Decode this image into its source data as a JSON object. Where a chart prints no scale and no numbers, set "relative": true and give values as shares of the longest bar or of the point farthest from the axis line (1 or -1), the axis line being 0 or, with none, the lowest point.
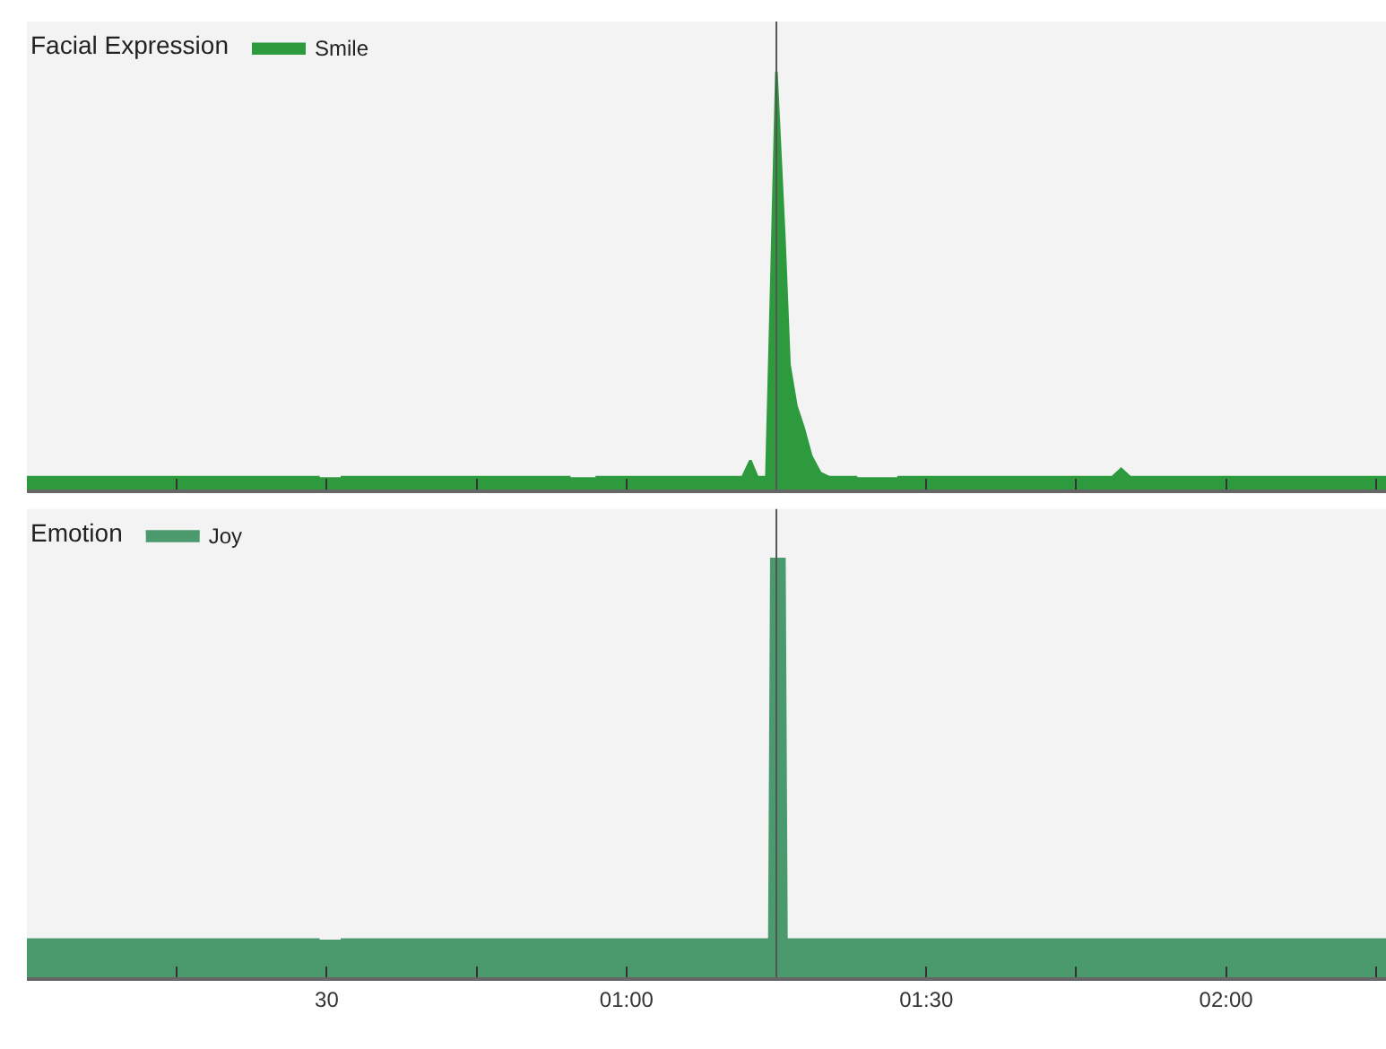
{
  "chart_data": [
    {
      "type": "area",
      "relative": true,
      "legend_title": "Facial Expression",
      "legend": "top left",
      "tick_labels": false,
      "xlim": [
        0,
        136
      ],
      "xticks": [
        {
          "value": 15,
          "label": null
        },
        {
          "value": 30,
          "label": null
        },
        {
          "value": 45,
          "label": null
        },
        {
          "value": 60,
          "label": null
        },
        {
          "value": 75,
          "label": null
        },
        {
          "value": 90,
          "label": null
        },
        {
          "value": 105,
          "label": null
        },
        {
          "value": 120,
          "label": null
        },
        {
          "value": 135,
          "label": null
        }
      ],
      "ref_lines": [
        {
          "axis": "x",
          "value": 75,
          "color": "#555555"
        }
      ],
      "series": [
        {
          "name": "Smile",
          "color": "#2e9a3e",
          "x": [
            0,
            29.3,
            30.5,
            31.4,
            54.4,
            55.5,
            56.9,
            71.6,
            72.4,
            73.1,
            74.0,
            74.5,
            75.0,
            75.8,
            76.3,
            77.0,
            77.7,
            78.5,
            79.4,
            80.3,
            83.1,
            85,
            87.1,
            108.6,
            109.5,
            110.4,
            136
          ],
          "values": [
            0.03,
            0.03,
            null,
            0.03,
            0.03,
            null,
            0.03,
            0.03,
            0.07,
            0.03,
            0.03,
            0.5,
            1.0,
            0.6,
            0.3,
            0.2,
            0.15,
            0.08,
            0.04,
            0.03,
            0.03,
            null,
            0.03,
            0.03,
            0.05,
            0.03,
            0.03
          ]
        }
      ]
    },
    {
      "type": "area",
      "relative": true,
      "legend_title": "Emotion",
      "legend": "top left",
      "tick_labels": "x",
      "xlim": [
        0,
        136
      ],
      "xticks": [
        {
          "value": 15,
          "label": null
        },
        {
          "value": 30,
          "label": "30"
        },
        {
          "value": 45,
          "label": null
        },
        {
          "value": 60,
          "label": "01:00"
        },
        {
          "value": 75,
          "label": null
        },
        {
          "value": 90,
          "label": "01:30"
        },
        {
          "value": 105,
          "label": null
        },
        {
          "value": 120,
          "label": "02:00"
        },
        {
          "value": 135,
          "label": null
        }
      ],
      "ref_lines": [
        {
          "axis": "x",
          "value": 75,
          "color": "#555555"
        }
      ],
      "series": [
        {
          "name": "Joy",
          "color": "#4a9a6e",
          "x": [
            0,
            29.3,
            30.5,
            31.4,
            74.3,
            74.5,
            75.0,
            75.8,
            76.0,
            136
          ],
          "values": [
            0.09,
            0.09,
            null,
            0.09,
            0.09,
            1.0,
            1.0,
            1.0,
            0.09,
            0.09
          ]
        }
      ]
    }
  ]
}
